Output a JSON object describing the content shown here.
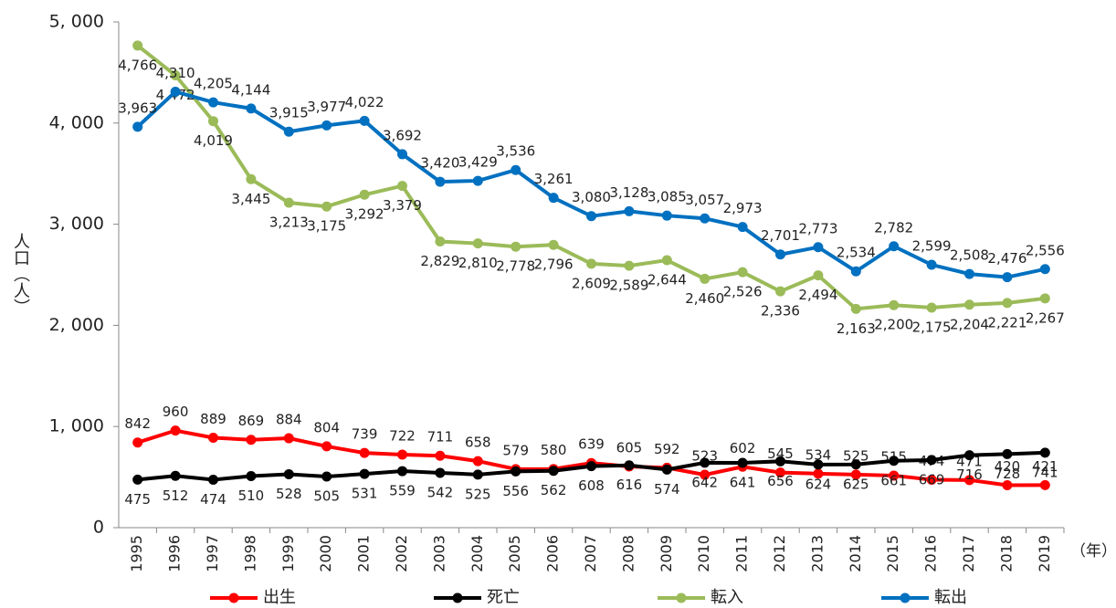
{
  "chart_data": {
    "type": "line",
    "y_label": "人口（人）",
    "x_label": "（年）",
    "categories": [
      "1995",
      "1996",
      "1997",
      "1998",
      "1999",
      "2000",
      "2001",
      "2002",
      "2003",
      "2004",
      "2005",
      "2006",
      "2007",
      "2008",
      "2009",
      "2010",
      "2011",
      "2012",
      "2013",
      "2014",
      "2015",
      "2016",
      "2017",
      "2018",
      "2019"
    ],
    "ylim": [
      0,
      5000
    ],
    "yticks": [
      {
        "value": 0,
        "label": "0"
      },
      {
        "value": 1000,
        "label": "1, 000"
      },
      {
        "value": 2000,
        "label": "2, 000"
      },
      {
        "value": 3000,
        "label": "3, 000"
      },
      {
        "value": 4000,
        "label": "4, 000"
      },
      {
        "value": 5000,
        "label": "5, 000"
      }
    ],
    "grid": false,
    "series": [
      {
        "name": "出生",
        "color": "#ff0000",
        "label_side": "above",
        "values": [
          842,
          960,
          889,
          869,
          884,
          804,
          739,
          722,
          711,
          658,
          579,
          580,
          639,
          605,
          592,
          523,
          602,
          545,
          534,
          525,
          515,
          474,
          471,
          420,
          421
        ]
      },
      {
        "name": "死亡",
        "color": "#000000",
        "label_side": "below",
        "values": [
          475,
          512,
          474,
          510,
          528,
          505,
          531,
          559,
          542,
          525,
          556,
          562,
          608,
          616,
          574,
          642,
          641,
          656,
          624,
          625,
          661,
          669,
          716,
          728,
          741
        ]
      },
      {
        "name": "転入",
        "color": "#9bbb59",
        "label_side": "below",
        "values": [
          4766,
          4472,
          4019,
          3445,
          3213,
          3175,
          3292,
          3379,
          2829,
          2810,
          2778,
          2796,
          2609,
          2589,
          2644,
          2460,
          2526,
          2336,
          2494,
          2163,
          2200,
          2175,
          2204,
          2221,
          2267
        ],
        "value_labels": [
          "4,766",
          "4,472",
          "4,019",
          "3,445",
          "3,213",
          "3,175",
          "3,292",
          "3,379",
          "2,829",
          "2,810",
          "2,778",
          "2,796",
          "2,609",
          "2,589",
          "2,644",
          "2,460",
          "2,526",
          "2,336",
          "2,494",
          "2,163",
          "2,200",
          "2,175",
          "2,204",
          "2,221",
          "2,267"
        ]
      },
      {
        "name": "転出",
        "color": "#0070c0",
        "label_side": "above",
        "values": [
          3963,
          4310,
          4205,
          4144,
          3915,
          3977,
          4022,
          3692,
          3420,
          3429,
          3536,
          3261,
          3080,
          3128,
          3085,
          3057,
          2973,
          2701,
          2773,
          2534,
          2782,
          2599,
          2508,
          2476,
          2556
        ],
        "value_labels": [
          "3,963",
          "4,310",
          "4,205",
          "4,144",
          "3,915",
          "3,977",
          "4,022",
          "3,692",
          "3,420",
          "3,429",
          "3,536",
          "3,261",
          "3,080",
          "3,128",
          "3,085",
          "3,057",
          "2,973",
          "2,701",
          "2,773",
          "2,534",
          "2,782",
          "2,599",
          "2,508",
          "2,476",
          "2,556"
        ]
      }
    ]
  }
}
